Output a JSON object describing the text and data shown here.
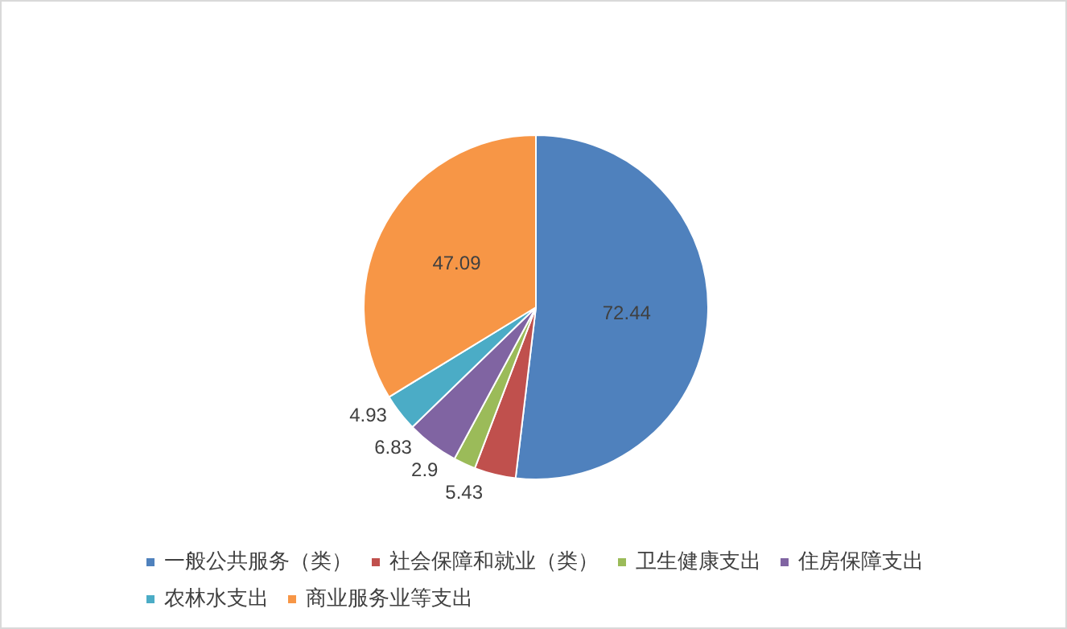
{
  "chart_data": {
    "type": "pie",
    "categories": [
      "一般公共服务（类）",
      "社会保障和就业（类）",
      "卫生健康支出",
      "住房保障支出",
      "农林水支出",
      "商业服务业等支出"
    ],
    "values": [
      72.44,
      5.43,
      2.9,
      6.83,
      4.93,
      47.09
    ],
    "colors": [
      "#4f81bd",
      "#c0504d",
      "#9bbb59",
      "#8064a2",
      "#4bacc6",
      "#f79646"
    ],
    "data_labels": true,
    "legend": "bottom"
  }
}
